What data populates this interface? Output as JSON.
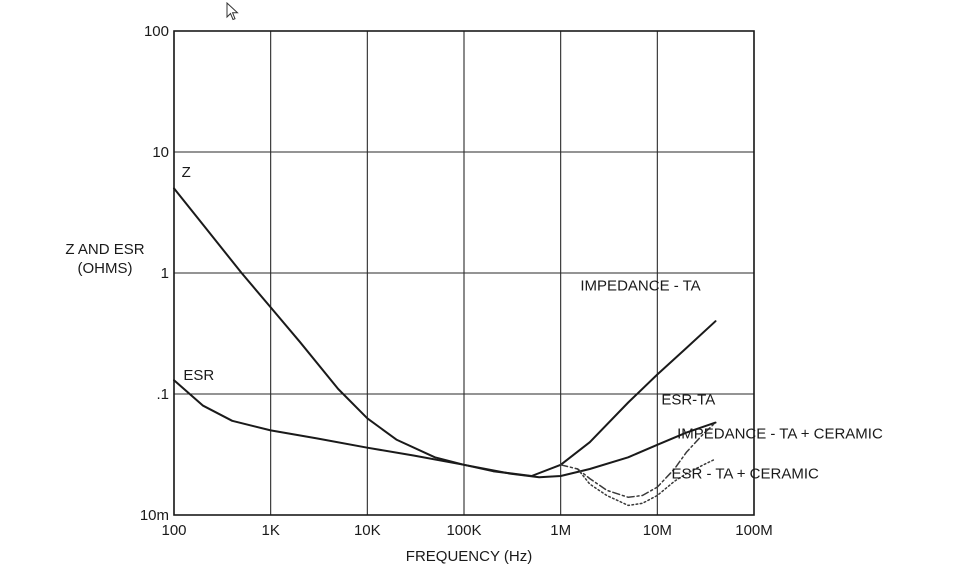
{
  "chart_data": {
    "type": "line",
    "title": "",
    "xlabel": "FREQUENCY (Hz)",
    "ylabel": [
      "Z AND ESR",
      "(OHMS)"
    ],
    "x_scale": "log",
    "y_scale": "log",
    "xlim": [
      100,
      100000000
    ],
    "ylim": [
      0.01,
      100
    ],
    "grid": true,
    "x_ticks": [
      {
        "value": 100,
        "label": "100"
      },
      {
        "value": 1000,
        "label": "1K"
      },
      {
        "value": 10000,
        "label": "10K"
      },
      {
        "value": 100000,
        "label": "100K"
      },
      {
        "value": 1000000,
        "label": "1M"
      },
      {
        "value": 10000000,
        "label": "10M"
      },
      {
        "value": 100000000,
        "label": "100M"
      }
    ],
    "y_ticks": [
      {
        "value": 0.01,
        "label": "10m"
      },
      {
        "value": 0.1,
        "label": ".1"
      },
      {
        "value": 1,
        "label": "1"
      },
      {
        "value": 10,
        "label": "10"
      },
      {
        "value": 100,
        "label": "100"
      }
    ],
    "series": [
      {
        "name": "Z",
        "style": "solid",
        "color": "#1a1a1a",
        "x": [
          100,
          200,
          500,
          1000,
          2000,
          5000,
          10000,
          20000,
          50000,
          100000,
          200000,
          500000
        ],
        "y": [
          5,
          2.5,
          1,
          0.52,
          0.27,
          0.11,
          0.063,
          0.042,
          0.03,
          0.026,
          0.023,
          0.021
        ]
      },
      {
        "name": "ESR",
        "style": "solid",
        "color": "#1a1a1a",
        "x": [
          100,
          200,
          400,
          1000,
          3000,
          10000,
          30000,
          100000,
          300000,
          600000,
          1000000,
          2000000,
          5000000,
          10000000,
          20000000,
          40000000
        ],
        "y": [
          0.13,
          0.08,
          0.06,
          0.05,
          0.043,
          0.036,
          0.031,
          0.026,
          0.022,
          0.0205,
          0.021,
          0.024,
          0.03,
          0.038,
          0.048,
          0.058
        ]
      },
      {
        "name": "IMPEDANCE - TA",
        "style": "solid",
        "color": "#1a1a1a",
        "x": [
          500000,
          1000000,
          2000000,
          5000000,
          10000000,
          20000000,
          40000000
        ],
        "y": [
          0.021,
          0.026,
          0.04,
          0.085,
          0.145,
          0.24,
          0.4
        ]
      },
      {
        "name": "IMPEDANCE - TA + CERAMIC",
        "style": "dashdot",
        "color": "#3a3a3a",
        "x": [
          1000000,
          1500000,
          2000000,
          3000000,
          5000000,
          7000000,
          10000000,
          15000000,
          20000000,
          30000000,
          40000000
        ],
        "y": [
          0.026,
          0.024,
          0.02,
          0.016,
          0.014,
          0.0145,
          0.017,
          0.024,
          0.033,
          0.047,
          0.058
        ]
      },
      {
        "name": "ESR - TA + CERAMIC",
        "style": "dotted",
        "color": "#3a3a3a",
        "x": [
          1500000,
          2000000,
          3000000,
          5000000,
          7000000,
          10000000,
          15000000,
          20000000,
          30000000,
          40000000
        ],
        "y": [
          0.024,
          0.018,
          0.0145,
          0.012,
          0.0125,
          0.0145,
          0.019,
          0.022,
          0.026,
          0.029
        ]
      }
    ],
    "labels": [
      {
        "text": "Z",
        "x": 120,
        "y": 6.2
      },
      {
        "text": "ESR",
        "x": 125,
        "y": 0.13
      },
      {
        "text": "IMPEDANCE - TA",
        "x": 1600000,
        "y": 0.72
      },
      {
        "text": "ESR-TA",
        "x": 11000000,
        "y": 0.082
      },
      {
        "text": "IMPEDANCE - TA + CERAMIC",
        "x": 16000000,
        "y": 0.043
      },
      {
        "text": "ESR - TA + CERAMIC",
        "x": 14000000,
        "y": 0.02
      }
    ]
  }
}
